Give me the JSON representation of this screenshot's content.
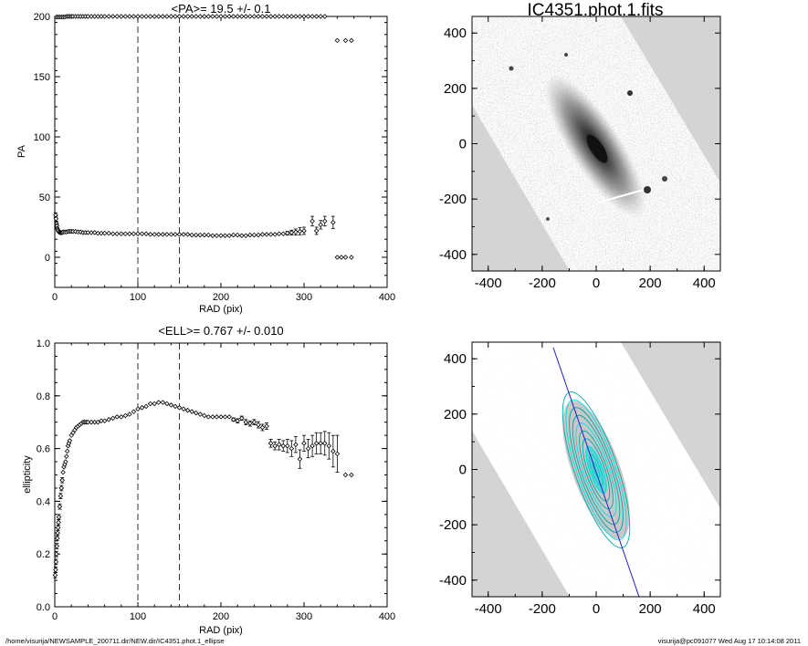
{
  "chart_data": [
    {
      "type": "scatter",
      "title": "<PA>=  19.5 +/-   0.1",
      "xlabel": "RAD (pix)",
      "ylabel": "PA",
      "xlim": [
        0,
        400
      ],
      "ylim": [
        -25,
        200
      ],
      "xticks": [
        "0",
        "100",
        "200",
        "300",
        "400"
      ],
      "yticks": [
        "0",
        "50",
        "100",
        "150",
        "200"
      ],
      "vlines": [
        100,
        150
      ],
      "series": [
        {
          "x": [
            1,
            1.5,
            2,
            2.5,
            3,
            3.5,
            4,
            5,
            6,
            7,
            8,
            9,
            10,
            12,
            14,
            16,
            18,
            20,
            22,
            25,
            28,
            31,
            34,
            37,
            40,
            44,
            48,
            52,
            56,
            60,
            65,
            70,
            75,
            80,
            85,
            90,
            95,
            100,
            105,
            110,
            115,
            120,
            125,
            130,
            135,
            140,
            145,
            150,
            155,
            160,
            165,
            170,
            175,
            180,
            185,
            190,
            195,
            200,
            205,
            210,
            215,
            220,
            225,
            230,
            235,
            240,
            245,
            250,
            255,
            260,
            265,
            270,
            275,
            280,
            285,
            290,
            295,
            300,
            310,
            315,
            320,
            325,
            335,
            340,
            345,
            350,
            357
          ],
          "y": [
            35,
            32,
            28,
            26,
            24,
            23,
            22,
            21,
            20.5,
            20.5,
            20.5,
            20.5,
            21,
            21,
            21,
            21.5,
            21.5,
            21.5,
            21.5,
            21.5,
            21,
            21,
            20.5,
            20.5,
            20.5,
            20.5,
            20.5,
            20,
            20,
            20,
            20,
            19.5,
            19.5,
            19.5,
            19.5,
            19.5,
            19.5,
            19.5,
            19.5,
            19.5,
            19,
            19,
            19,
            19,
            19,
            19,
            19,
            19,
            19,
            19,
            18.5,
            18.5,
            18.5,
            18.5,
            18.5,
            18,
            18,
            18,
            18,
            18,
            18.5,
            18.5,
            18,
            18,
            18.5,
            18.5,
            18.5,
            19,
            19,
            19,
            19,
            19.5,
            19.5,
            20,
            20.5,
            21,
            21.5,
            22,
            30,
            22,
            27,
            30,
            29,
            0,
            0,
            0,
            0
          ],
          "err": [
            2,
            2,
            1.5,
            1.5,
            1,
            1,
            1,
            1,
            0.8,
            0.8,
            0.8,
            0.8,
            0.6,
            0.6,
            0.6,
            0.5,
            0.5,
            0.5,
            0.5,
            0.5,
            0.5,
            0.5,
            0.5,
            0.5,
            0.5,
            0.5,
            0.5,
            0.5,
            0.5,
            0.5,
            0.5,
            0.5,
            0.5,
            0.5,
            0.5,
            0.5,
            0.5,
            0.5,
            0.5,
            0.5,
            0.5,
            0.5,
            0.5,
            0.5,
            0.5,
            0.5,
            0.5,
            0.5,
            0.5,
            0.5,
            0.5,
            0.5,
            0.5,
            0.5,
            0.5,
            0.5,
            0.5,
            0.5,
            0.5,
            0.5,
            0.5,
            0.5,
            0.5,
            0.5,
            0.5,
            0.5,
            0.5,
            0.5,
            0.5,
            0.5,
            0.5,
            0.8,
            1,
            1.5,
            2,
            2.5,
            3,
            3,
            4,
            3,
            3.5,
            4,
            5,
            0,
            0,
            0,
            0
          ]
        },
        {
          "x": [
            2,
            4,
            6,
            8,
            10,
            12,
            14,
            16,
            18,
            20,
            22,
            25,
            28,
            31,
            34,
            37,
            40,
            44,
            48,
            52,
            56,
            60,
            65,
            70,
            75,
            80,
            85,
            90,
            95,
            100,
            105,
            110,
            115,
            120,
            125,
            130,
            135,
            140,
            145,
            150,
            155,
            160,
            165,
            170,
            175,
            180,
            185,
            190,
            195,
            200,
            205,
            210,
            215,
            220,
            225,
            230,
            235,
            240,
            245,
            250,
            255,
            260,
            265,
            270,
            275,
            280,
            285,
            290,
            295,
            300,
            305,
            310,
            315,
            320,
            325,
            340,
            350,
            357
          ],
          "y": [
            199.5,
            199.5,
            199.5,
            199.5,
            199.5,
            199.5,
            200,
            200,
            200,
            200,
            200,
            200,
            200,
            200,
            200,
            200,
            200,
            200,
            200,
            200,
            200,
            200,
            200,
            200,
            200,
            200,
            200,
            200,
            200,
            200,
            200,
            200,
            200,
            200,
            200,
            200,
            200,
            200,
            200,
            200,
            200,
            200,
            200,
            200,
            200,
            200,
            200,
            200,
            200,
            200,
            200,
            200,
            200,
            200,
            200,
            200,
            200,
            200,
            200,
            200,
            200,
            200,
            200,
            200,
            200,
            200,
            200,
            200,
            200,
            200,
            200,
            200,
            200,
            200,
            200,
            180,
            180,
            180
          ]
        }
      ]
    },
    {
      "type": "scatter",
      "title": "<ELL>= 0.767 +/-  0.010",
      "xlabel": "RAD (pix)",
      "ylabel": "ellipticity",
      "xlim": [
        0,
        400
      ],
      "ylim": [
        0.0,
        1.0
      ],
      "xticks": [
        "0",
        "100",
        "200",
        "300",
        "400"
      ],
      "yticks": [
        "0.0",
        "0.2",
        "0.4",
        "0.6",
        "0.8",
        "1.0"
      ],
      "vlines": [
        100,
        150
      ],
      "series": [
        {
          "x": [
            0.5,
            1,
            1.5,
            2,
            2.5,
            3,
            3.5,
            4,
            4.5,
            5,
            6,
            7,
            8,
            9,
            10,
            11,
            12,
            13,
            14,
            15,
            16,
            17,
            18,
            20,
            22,
            24,
            26,
            28,
            30,
            32,
            34,
            36,
            38,
            40,
            44,
            48,
            52,
            56,
            60,
            65,
            70,
            75,
            80,
            85,
            90,
            95,
            100,
            105,
            110,
            115,
            120,
            125,
            130,
            135,
            140,
            145,
            150,
            155,
            160,
            165,
            170,
            175,
            180,
            185,
            190,
            195,
            200,
            205,
            210,
            215,
            220,
            225,
            230,
            235,
            240,
            245,
            250,
            255,
            260,
            265,
            270,
            275,
            280,
            285,
            290,
            295,
            300,
            305,
            310,
            315,
            320,
            325,
            330,
            335,
            340,
            350,
            357
          ],
          "y": [
            0.12,
            0.14,
            0.17,
            0.2,
            0.23,
            0.26,
            0.28,
            0.3,
            0.32,
            0.34,
            0.38,
            0.42,
            0.45,
            0.48,
            0.51,
            0.53,
            0.54,
            0.55,
            0.57,
            0.59,
            0.61,
            0.62,
            0.63,
            0.65,
            0.66,
            0.67,
            0.68,
            0.685,
            0.69,
            0.695,
            0.7,
            0.7,
            0.7,
            0.7,
            0.7,
            0.7,
            0.7,
            0.705,
            0.705,
            0.71,
            0.715,
            0.72,
            0.72,
            0.725,
            0.73,
            0.74,
            0.75,
            0.755,
            0.76,
            0.77,
            0.77,
            0.775,
            0.775,
            0.77,
            0.765,
            0.76,
            0.755,
            0.75,
            0.745,
            0.74,
            0.735,
            0.73,
            0.725,
            0.72,
            0.72,
            0.72,
            0.72,
            0.72,
            0.72,
            0.71,
            0.705,
            0.715,
            0.7,
            0.695,
            0.7,
            0.69,
            0.68,
            0.685,
            0.62,
            0.61,
            0.615,
            0.61,
            0.61,
            0.6,
            0.615,
            0.56,
            0.62,
            0.6,
            0.61,
            0.62,
            0.62,
            0.62,
            0.61,
            0.59,
            0.58,
            0.5,
            0.5
          ],
          "err": [
            0.01,
            0.01,
            0.01,
            0.01,
            0.01,
            0.01,
            0.01,
            0.01,
            0.01,
            0.01,
            0.01,
            0.01,
            0.01,
            0.01,
            0.005,
            0.005,
            0.005,
            0.005,
            0.005,
            0.005,
            0.005,
            0.005,
            0.005,
            0.005,
            0.005,
            0.005,
            0.005,
            0.005,
            0.005,
            0.005,
            0.005,
            0.005,
            0.005,
            0.005,
            0.005,
            0.005,
            0.005,
            0.005,
            0.005,
            0.005,
            0.005,
            0.005,
            0.005,
            0.005,
            0.005,
            0.005,
            0.005,
            0.005,
            0.005,
            0.005,
            0.005,
            0.005,
            0.005,
            0.005,
            0.005,
            0.005,
            0.005,
            0.005,
            0.005,
            0.005,
            0.005,
            0.005,
            0.005,
            0.005,
            0.005,
            0.005,
            0.005,
            0.005,
            0.005,
            0.006,
            0.008,
            0.008,
            0.01,
            0.01,
            0.01,
            0.012,
            0.012,
            0.012,
            0.015,
            0.015,
            0.02,
            0.02,
            0.025,
            0.03,
            0.03,
            0.035,
            0.03,
            0.035,
            0.04,
            0.04,
            0.04,
            0.045,
            0.05,
            0.06,
            0.07,
            0.005,
            0.005
          ]
        }
      ]
    },
    {
      "type": "image",
      "title": "IC4351.phot.1.fits",
      "xlim": [
        -460,
        460
      ],
      "ylim": [
        -460,
        460
      ],
      "xticks": [
        "-400",
        "-200",
        "0",
        "200",
        "400"
      ],
      "yticks": [
        "-400",
        "-200",
        "0",
        "200",
        "400"
      ]
    },
    {
      "type": "image",
      "title": "",
      "xlim": [
        -460,
        460
      ],
      "ylim": [
        -460,
        460
      ],
      "xticks": [
        "-400",
        "-200",
        "0",
        "200",
        "400"
      ],
      "yticks": [
        "-400",
        "-200",
        "0",
        "200",
        "400"
      ],
      "overlay_colors": [
        "#00a8a8",
        "#2020c8",
        "#00e0e0"
      ]
    }
  ],
  "footer": {
    "left": "/home/visurija/NEWSAMPLE_200711.dir/NEW.dir/IC4351.phot.1_ellipse",
    "right": "visurija@pc091077  Wed Aug 17 10:14:08 2011"
  },
  "colors": {
    "background": "#ffffff",
    "image_frame_fill": "#d4d4d4",
    "ellipse_fit": "#00a8a8",
    "major_axis": "#2020c8"
  }
}
